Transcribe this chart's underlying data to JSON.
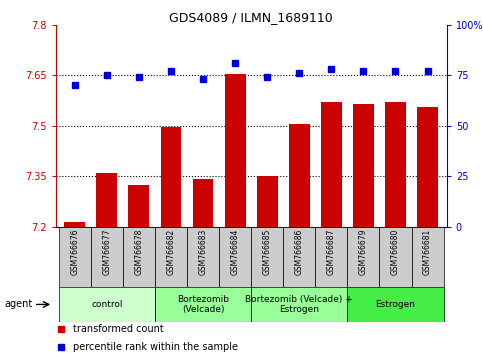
{
  "title": "GDS4089 / ILMN_1689110",
  "samples": [
    "GSM766676",
    "GSM766677",
    "GSM766678",
    "GSM766682",
    "GSM766683",
    "GSM766684",
    "GSM766685",
    "GSM766686",
    "GSM766687",
    "GSM766679",
    "GSM766680",
    "GSM766681"
  ],
  "bar_values": [
    7.215,
    7.36,
    7.325,
    7.495,
    7.34,
    7.655,
    7.35,
    7.505,
    7.57,
    7.565,
    7.57,
    7.555
  ],
  "percentile_values": [
    70,
    75,
    74,
    77,
    73,
    81,
    74,
    76,
    78,
    77,
    77,
    77
  ],
  "ylim_left": [
    7.2,
    7.8
  ],
  "ylim_right": [
    0,
    100
  ],
  "yticks_left": [
    7.2,
    7.35,
    7.5,
    7.65,
    7.8
  ],
  "yticks_right": [
    0,
    25,
    50,
    75,
    100
  ],
  "ytick_labels_left": [
    "7.2",
    "7.35",
    "7.5",
    "7.65",
    "7.8"
  ],
  "ytick_labels_right": [
    "0",
    "25",
    "50",
    "75",
    "100%"
  ],
  "hlines": [
    7.35,
    7.5,
    7.65
  ],
  "bar_color": "#cc0000",
  "dot_color": "#0000cc",
  "bar_width": 0.65,
  "groups": [
    {
      "label": "control",
      "start": 0,
      "end": 3,
      "color": "#ccffcc"
    },
    {
      "label": "Bortezomib\n(Velcade)",
      "start": 3,
      "end": 6,
      "color": "#99ff99"
    },
    {
      "label": "Bortezomib (Velcade) +\nEstrogen",
      "start": 6,
      "end": 9,
      "color": "#99ff99"
    },
    {
      "label": "Estrogen",
      "start": 9,
      "end": 12,
      "color": "#44ee44"
    }
  ],
  "agent_label": "agent",
  "legend_items": [
    {
      "color": "#cc0000",
      "label": "transformed count"
    },
    {
      "color": "#0000cc",
      "label": "percentile rank within the sample"
    }
  ],
  "bg_color": "#ffffff",
  "plot_bg_color": "#ffffff",
  "tick_area_color": "#cccccc"
}
